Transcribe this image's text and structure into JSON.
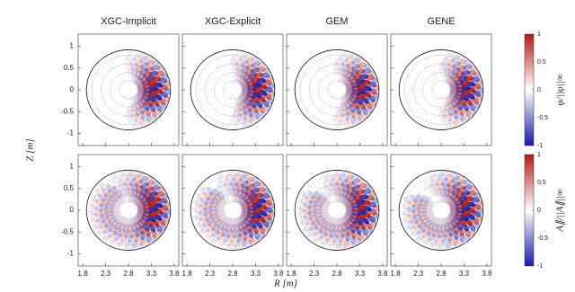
{
  "chart_data": {
    "type": "contour",
    "columns": [
      "XGC-Implicit",
      "XGC-Explicit",
      "GEM",
      "GENE"
    ],
    "xlabel": "R [m]",
    "ylabel": "Z [m]",
    "xlim": [
      1.7,
      3.9
    ],
    "ylim": [
      -1.28,
      1.28
    ],
    "xticks": [
      1.8,
      2.3,
      2.8,
      3.3,
      3.8
    ],
    "yticks": [
      1,
      0.5,
      0,
      -0.5,
      -1
    ],
    "rows": [
      {
        "colorbar_label": "φ/||φ||∞",
        "clim": [
          -1,
          1
        ],
        "cticks": [
          1,
          0.5,
          0,
          -0.5,
          -1
        ],
        "colors": [
          "#1a1aa6",
          "#ffffff",
          "#b21a1a"
        ]
      },
      {
        "colorbar_label": "A∥/||A∥||∞",
        "clim": [
          -1,
          1
        ],
        "cticks": [
          1,
          0.5,
          0,
          -0.5,
          -1
        ],
        "colors": [
          "#1a1aa6",
          "#ffffff",
          "#b21a1a"
        ]
      }
    ]
  }
}
